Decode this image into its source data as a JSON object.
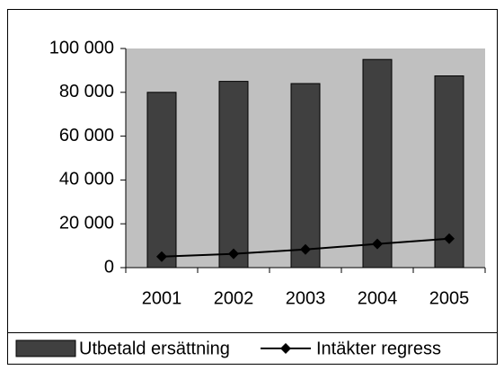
{
  "chart_data": {
    "type": "bar",
    "categories": [
      "2001",
      "2002",
      "2003",
      "2004",
      "2005"
    ],
    "series": [
      {
        "name": "Utbetald ersättning",
        "type": "bar",
        "color": "#404040",
        "values": [
          80000,
          85000,
          84000,
          95000,
          87500
        ]
      },
      {
        "name": "Intäkter regress",
        "type": "line",
        "color": "#000000",
        "values": [
          5000,
          6300,
          8300,
          10800,
          13200
        ]
      }
    ],
    "ylim": [
      0,
      100000
    ],
    "yticks": [
      0,
      {
        "value": 20000,
        "label": "20 000"
      },
      {
        "value": 40000,
        "label": "40 000"
      },
      {
        "value": 60000,
        "label": "60 000"
      },
      {
        "value": 80000,
        "label": "80 000"
      },
      {
        "value": 100000,
        "label": "100 000"
      }
    ],
    "plot_background": "#c0c0c0",
    "legend": "bottom"
  }
}
